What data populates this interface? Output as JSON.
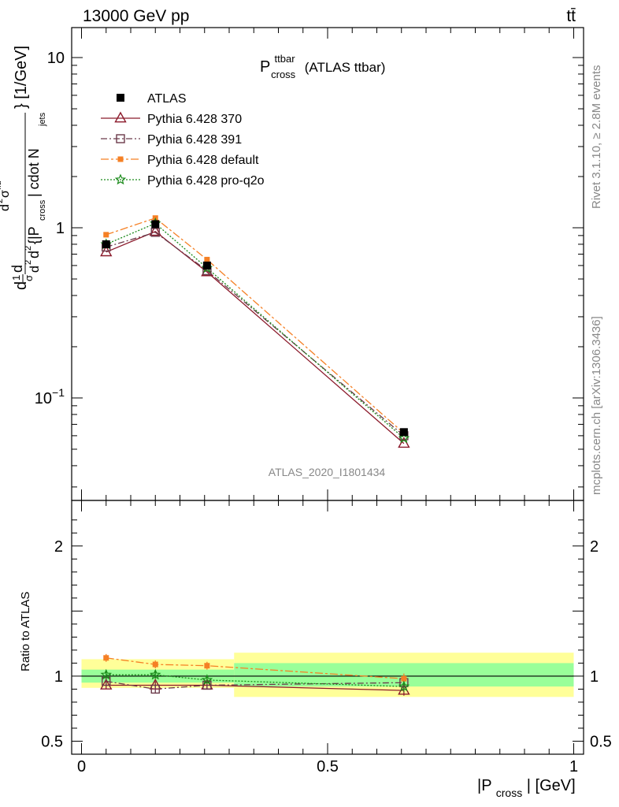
{
  "header": {
    "energy_label": "13000 GeV pp",
    "process_label": "tt̄",
    "rivet_label": "Rivet 3.1.10, ≥ 2.8M events",
    "mcplots_label": "mcplots.cern.ch [arXiv:1306.3436]",
    "analysis_label": "ATLAS_2020_I1801434"
  },
  "plot_title": {
    "main": "P",
    "sup": "ttbar",
    "sub": "cross",
    "suffix": "(ATLAS ttbar)"
  },
  "y_axis_label": {
    "left": "d",
    "frac_num": "1",
    "frac_den": "σ",
    "d": "d",
    "d2": "d",
    "d2_sup": "2",
    "sigma_sup": "2",
    "sigma": "σ",
    "sigma_sup2": "fid",
    "d2_den": "d",
    "d2_den_sup": "2",
    "bracket_open": "{|P",
    "cross_sub": "cross",
    "bracket_mid": "| cdot N",
    "jets_sub": "jets",
    "bracket_close": "} [1/GeV]"
  },
  "ratio_y_label": "Ratio to ATLAS",
  "x_axis_label": {
    "open": "|P",
    "sub": "cross",
    "close": "| [GeV]"
  },
  "colors": {
    "atlas": "#000000",
    "p370": "#8b1a2b",
    "p391": "#6b3a4a",
    "pdefault": "#f58025",
    "pq2o": "#1a8a1a",
    "band_inner": "#99ff99",
    "band_outer": "#ffff99"
  },
  "chart_data": [
    {
      "type": "scatter",
      "log_y": true,
      "xlim": [
        -0.02,
        1.02
      ],
      "ylim": [
        0.025,
        15
      ],
      "y_ticks": [
        {
          "value": 10,
          "label": "10"
        },
        {
          "value": 1,
          "label": "1"
        },
        {
          "value": 0.1,
          "label": "10",
          "sup": "−1"
        }
      ],
      "x": [
        0.05,
        0.15,
        0.255,
        0.655
      ],
      "x_edges": [
        0.0,
        0.1,
        0.2,
        0.31,
        1.0
      ],
      "series": [
        {
          "name": "ATLAS",
          "key": "atlas",
          "values": [
            0.8,
            1.05,
            0.6,
            0.063
          ]
        },
        {
          "name": "Pythia 6.428 370",
          "key": "p370",
          "values": [
            0.72,
            0.95,
            0.55,
            0.054
          ]
        },
        {
          "name": "Pythia 6.428 391",
          "key": "p391",
          "values": [
            0.77,
            0.94,
            0.56,
            0.06
          ]
        },
        {
          "name": "Pythia 6.428 default",
          "key": "pdefault",
          "values": [
            0.91,
            1.14,
            0.65,
            0.062
          ]
        },
        {
          "name": "Pythia 6.428 pro-q2o",
          "key": "pq2o",
          "values": [
            0.8,
            1.06,
            0.58,
            0.058
          ]
        }
      ],
      "legend_position": "top-left"
    },
    {
      "type": "scatter",
      "xlim": [
        -0.02,
        1.02
      ],
      "ylim": [
        0.4,
        2.35
      ],
      "y_ticks": [
        {
          "value": 2,
          "label": "2"
        },
        {
          "value": 1,
          "label": "1"
        },
        {
          "value": 0.5,
          "label": "0.5"
        }
      ],
      "x_ticks": [
        {
          "value": 0,
          "label": "0"
        },
        {
          "value": 0.5,
          "label": "0.5"
        },
        {
          "value": 1,
          "label": "1"
        }
      ],
      "x": [
        0.05,
        0.15,
        0.255,
        0.655
      ],
      "band_edges": [
        0.0,
        0.31,
        1.0
      ],
      "band_inner": [
        [
          0.95,
          1.05
        ],
        [
          0.92,
          1.1
        ]
      ],
      "band_outer": [
        [
          0.91,
          1.13
        ],
        [
          0.84,
          1.18
        ]
      ],
      "series": [
        {
          "name": "Pythia 6.428 370",
          "key": "p370",
          "values": [
            0.93,
            0.93,
            0.93,
            0.89
          ],
          "err": [
            0.03,
            0.03,
            0.03,
            0.04
          ]
        },
        {
          "name": "Pythia 6.428 391",
          "key": "p391",
          "values": [
            0.96,
            0.9,
            0.93,
            0.95
          ],
          "err": [
            0.03,
            0.03,
            0.03,
            0.04
          ]
        },
        {
          "name": "Pythia 6.428 default",
          "key": "pdefault",
          "values": [
            1.14,
            1.09,
            1.08,
            0.98
          ],
          "err": [
            0.03,
            0.03,
            0.03,
            0.04
          ]
        },
        {
          "name": "Pythia 6.428 pro-q2o",
          "key": "pq2o",
          "values": [
            1.01,
            1.01,
            0.97,
            0.92
          ],
          "err": [
            0.03,
            0.03,
            0.03,
            0.04
          ]
        }
      ]
    }
  ]
}
